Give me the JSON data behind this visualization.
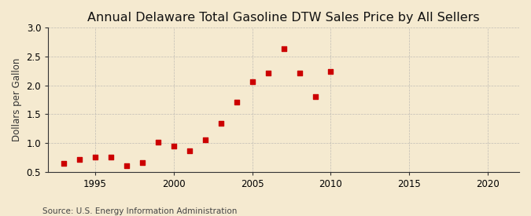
{
  "title": "Annual Delaware Total Gasoline DTW Sales Price by All Sellers",
  "ylabel": "Dollars per Gallon",
  "source": "Source: U.S. Energy Information Administration",
  "background_color": "#f5ead0",
  "years": [
    1993,
    1994,
    1995,
    1996,
    1997,
    1998,
    1999,
    2000,
    2001,
    2002,
    2003,
    2004,
    2005,
    2006,
    2007,
    2008,
    2009,
    2010
  ],
  "values": [
    0.65,
    0.71,
    0.76,
    0.76,
    0.6,
    0.66,
    1.02,
    0.95,
    0.87,
    1.06,
    1.34,
    1.71,
    2.07,
    2.21,
    2.63,
    2.22,
    1.81,
    2.24
  ],
  "marker_color": "#cc0000",
  "marker_size": 22,
  "xlim": [
    1992,
    2022
  ],
  "ylim": [
    0.5,
    3.0
  ],
  "xticks": [
    1995,
    2000,
    2005,
    2010,
    2015,
    2020
  ],
  "yticks": [
    0.5,
    1.0,
    1.5,
    2.0,
    2.5,
    3.0
  ],
  "grid_color": "#aaaaaa",
  "spine_color": "#333333",
  "title_fontsize": 11.5,
  "label_fontsize": 8.5,
  "tick_fontsize": 8.5,
  "source_fontsize": 7.5
}
